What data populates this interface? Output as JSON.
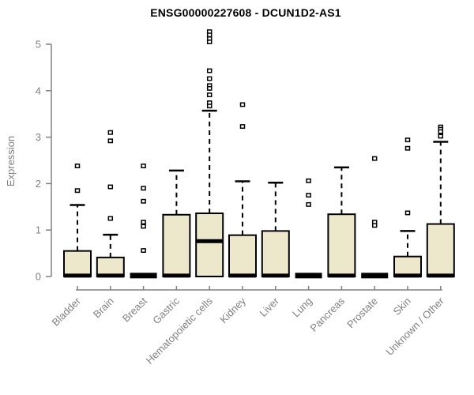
{
  "colors": {
    "box_fill": "#ede8cc",
    "box_stroke": "#000000",
    "axis": "#808080",
    "tick_label": "#808080",
    "title": "#000000",
    "background": "#ffffff"
  },
  "chart_data": {
    "type": "boxplot",
    "title": "ENSG00000227608 - DCUN1D2-AS1",
    "xlabel": "",
    "ylabel": "Expression",
    "ylim": [
      0,
      5
    ],
    "yticks": [
      0,
      1,
      2,
      3,
      4,
      5
    ],
    "grid": false,
    "legend": false,
    "categories": [
      "Bladder",
      "Brain",
      "Breast",
      "Gastric",
      "Hematopoietic cells",
      "Kidney",
      "Liver",
      "Lung",
      "Pancreas",
      "Prostate",
      "Skin",
      "Unknown / Other"
    ],
    "boxes": [
      {
        "category": "Bladder",
        "q1": 0,
        "median": 0.02,
        "q3": 0.55,
        "whisker_low": 0,
        "whisker_high": 1.54,
        "outliers": [
          2.38,
          1.85
        ]
      },
      {
        "category": "Brain",
        "q1": 0,
        "median": 0.02,
        "q3": 0.41,
        "whisker_low": 0,
        "whisker_high": 0.9,
        "outliers": [
          3.1,
          2.92,
          1.93,
          1.25
        ]
      },
      {
        "category": "Breast",
        "q1": 0,
        "median": 0.02,
        "q3": 0.02,
        "whisker_low": 0,
        "whisker_high": 0.02,
        "outliers": [
          2.38,
          1.9,
          1.62,
          1.17,
          1.08,
          0.56
        ]
      },
      {
        "category": "Gastric",
        "q1": 0,
        "median": 0.02,
        "q3": 1.33,
        "whisker_low": 0,
        "whisker_high": 2.28,
        "outliers": []
      },
      {
        "category": "Hematopoietic cells",
        "q1": 0,
        "median": 0.76,
        "q3": 1.36,
        "whisker_low": 0,
        "whisker_high": 3.57,
        "outliers": [
          5.27,
          5.2,
          5.12,
          5.05,
          4.43,
          4.26,
          4.11,
          4.05,
          3.91,
          3.74,
          3.67
        ]
      },
      {
        "category": "Kidney",
        "q1": 0,
        "median": 0.02,
        "q3": 0.89,
        "whisker_low": 0,
        "whisker_high": 2.05,
        "outliers": [
          3.7,
          3.23
        ]
      },
      {
        "category": "Liver",
        "q1": 0,
        "median": 0.02,
        "q3": 0.98,
        "whisker_low": 0,
        "whisker_high": 2.02,
        "outliers": []
      },
      {
        "category": "Lung",
        "q1": 0,
        "median": 0.02,
        "q3": 0.02,
        "whisker_low": 0,
        "whisker_high": 0.02,
        "outliers": [
          2.06,
          1.75,
          1.55
        ]
      },
      {
        "category": "Pancreas",
        "q1": 0,
        "median": 0.02,
        "q3": 1.34,
        "whisker_low": 0,
        "whisker_high": 2.35,
        "outliers": []
      },
      {
        "category": "Prostate",
        "q1": 0,
        "median": 0.02,
        "q3": 0.02,
        "whisker_low": 0,
        "whisker_high": 0.02,
        "outliers": [
          2.54,
          1.17,
          1.1
        ]
      },
      {
        "category": "Skin",
        "q1": 0,
        "median": 0.02,
        "q3": 0.43,
        "whisker_low": 0,
        "whisker_high": 0.98,
        "outliers": [
          2.94,
          2.76,
          1.37
        ]
      },
      {
        "category": "Unknown / Other",
        "q1": 0,
        "median": 0.02,
        "q3": 1.13,
        "whisker_low": 0,
        "whisker_high": 2.9,
        "outliers": [
          3.22,
          3.17,
          3.12,
          3.02
        ]
      }
    ]
  }
}
